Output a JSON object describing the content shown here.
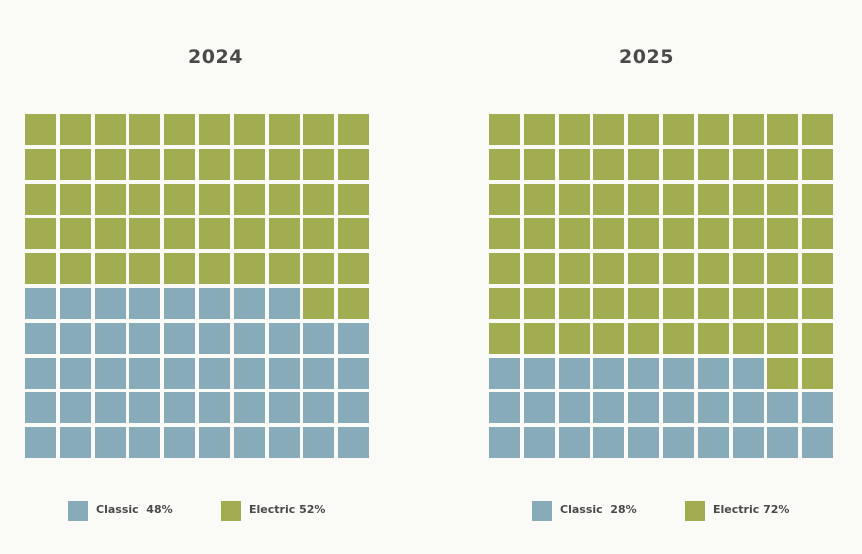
{
  "chart_data": [
    {
      "type": "waffle",
      "title": "2024",
      "grid": {
        "rows": 10,
        "cols": 10
      },
      "series": [
        {
          "name": "Classic",
          "value": 48,
          "color": "#87abb8",
          "legend_label": "Classic  48%"
        },
        {
          "name": "Electric",
          "value": 52,
          "color": "#a2ac50",
          "legend_label": "Electric 52%"
        }
      ]
    },
    {
      "type": "waffle",
      "title": "2025",
      "grid": {
        "rows": 10,
        "cols": 10
      },
      "series": [
        {
          "name": "Classic",
          "value": 28,
          "color": "#87abb8",
          "legend_label": "Classic  28%"
        },
        {
          "name": "Electric",
          "value": 72,
          "color": "#a2ac50",
          "legend_label": "Electric 72%"
        }
      ]
    }
  ]
}
